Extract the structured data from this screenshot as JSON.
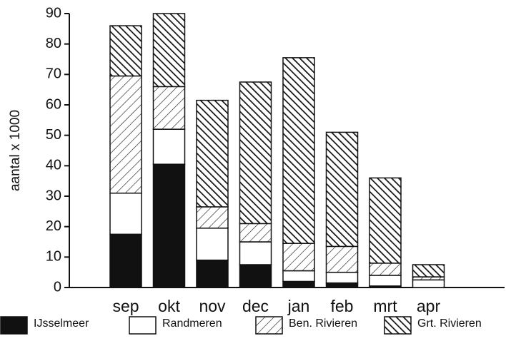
{
  "chart_data": {
    "type": "stacked_bar",
    "y_label": "aantal x 1000",
    "categories": [
      "sep",
      "okt",
      "nov",
      "dec",
      "jan",
      "feb",
      "mrt",
      "apr"
    ],
    "series": [
      {
        "name": "IJsselmeer",
        "color": "#111111",
        "hatch": "none",
        "values": [
          17.5,
          40.5,
          9,
          7.5,
          2,
          1.5,
          0.5,
          0
        ]
      },
      {
        "name": "Randmeren",
        "color": "#ffffff",
        "hatch": "none",
        "values": [
          13.5,
          11.5,
          10.5,
          7.5,
          3.5,
          3.5,
          3.5,
          2.5
        ]
      },
      {
        "name": "Ben. Rivieren",
        "color": "#ffffff",
        "hatch": "light",
        "values": [
          38.5,
          14,
          7,
          6,
          9,
          8.5,
          4,
          1
        ]
      },
      {
        "name": "Grt. Rivieren",
        "color": "#ffffff",
        "hatch": "dense",
        "values": [
          16.5,
          24,
          35,
          46.5,
          61,
          37.5,
          28,
          4
        ]
      }
    ],
    "ylim": [
      0,
      90
    ],
    "yticks": [
      0,
      10,
      20,
      30,
      40,
      50,
      60,
      70,
      80,
      90
    ],
    "legend": "bottom"
  }
}
